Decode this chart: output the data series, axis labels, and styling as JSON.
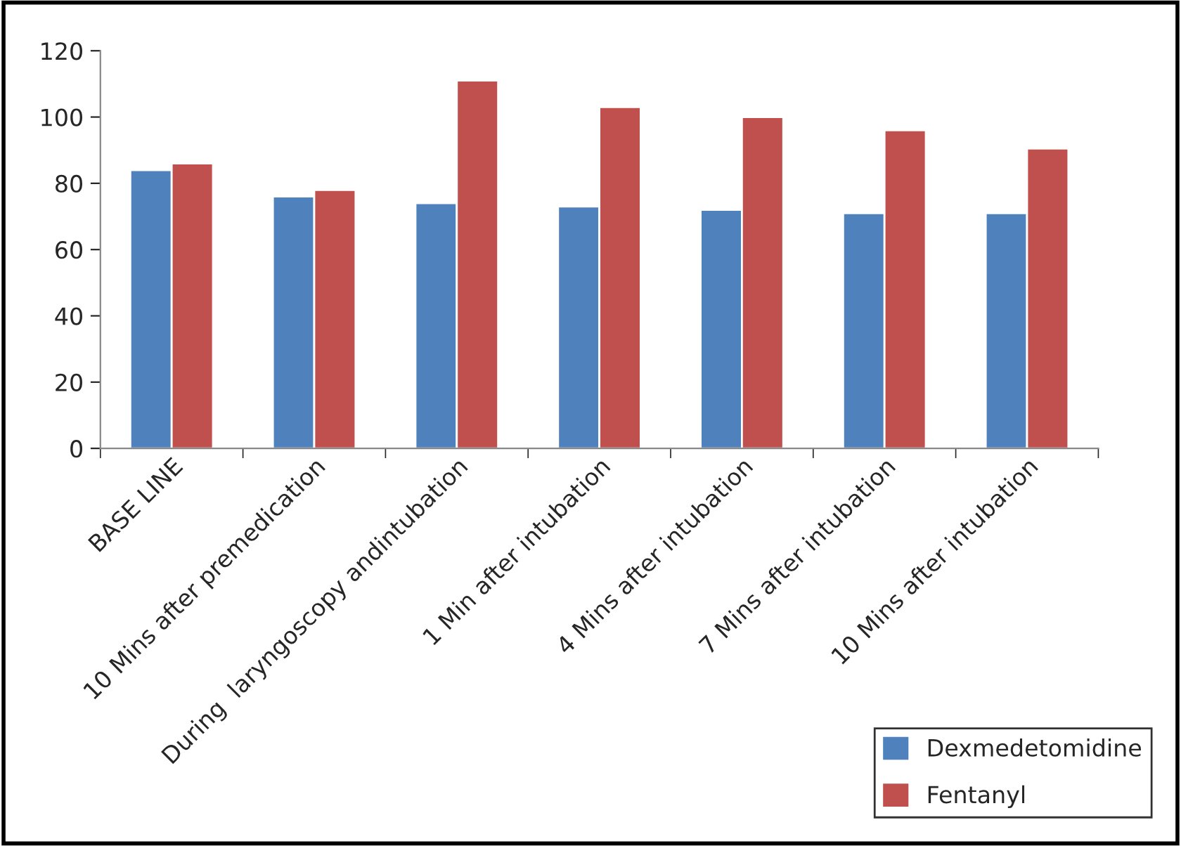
{
  "chart_data": {
    "type": "bar",
    "categories": [
      "BASE LINE",
      "10 Mins after premedication",
      "During  laryngoscopy andintubation",
      "1 Min after intubation",
      "4 Mins after intubation",
      "7 Mins after intubation",
      "10 Mins after intubation"
    ],
    "series": [
      {
        "name": "Dexmedetomidine",
        "color": "#4f81bd",
        "values": [
          84,
          76,
          74,
          73,
          72,
          71,
          71
        ]
      },
      {
        "name": "Fentanyl",
        "color": "#c0504d",
        "values": [
          86,
          78,
          111,
          103,
          100,
          96,
          90.5
        ]
      }
    ],
    "ylim": [
      0,
      120
    ],
    "yticks": [
      0,
      20,
      40,
      60,
      80,
      100,
      120
    ],
    "grid": false,
    "legend": "bottom right"
  }
}
